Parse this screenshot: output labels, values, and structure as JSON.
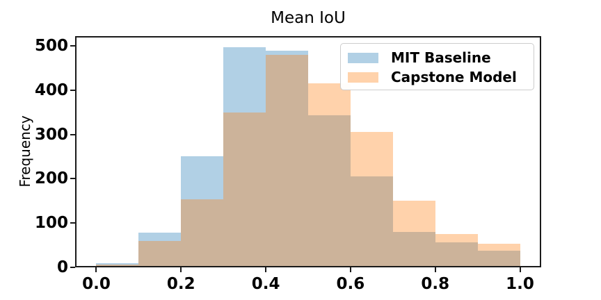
{
  "title": "Mean IoU",
  "chart_data": {
    "type": "histogram",
    "title": "Mean IoU",
    "xlabel": "",
    "ylabel": "Frequency",
    "bin_edges": [
      0.0,
      0.1,
      0.2,
      0.3,
      0.4,
      0.5,
      0.6,
      0.7,
      0.8,
      0.9,
      1.0
    ],
    "series": [
      {
        "name": "MIT Baseline",
        "color": "#1f77b4",
        "alpha": 0.35,
        "values": [
          10,
          79,
          251,
          497,
          489,
          343,
          205,
          80,
          57,
          38
        ]
      },
      {
        "name": "Capstone Model",
        "color": "#ff7f0e",
        "alpha": 0.35,
        "values": [
          7,
          60,
          154,
          349,
          479,
          416,
          306,
          150,
          76,
          54
        ]
      }
    ],
    "xticks": [
      0.0,
      0.2,
      0.4,
      0.6,
      0.8,
      1.0
    ],
    "yticks": [
      0,
      100,
      200,
      300,
      400,
      500
    ],
    "xlim": [
      -0.05,
      1.05
    ],
    "ylim": [
      0,
      522
    ],
    "grid": false,
    "legend": {
      "position": "upper right",
      "labels": [
        "MIT Baseline",
        "Capstone Model"
      ]
    },
    "axis_color": "#1a1a1a"
  }
}
